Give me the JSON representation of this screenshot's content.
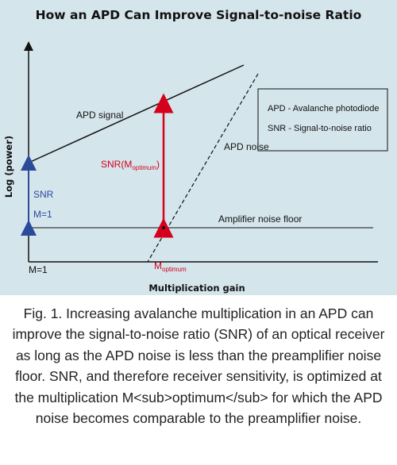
{
  "title": "How an APD Can Improve Signal-to-noise Ratio",
  "axes": {
    "y_label": "Log (power)",
    "x_label": "Multiplication gain",
    "origin_label": "M=1"
  },
  "curves": {
    "apd_signal": "APD signal",
    "apd_noise": "APD noise",
    "amplifier_floor": "Amplifier noise floor"
  },
  "annotations": {
    "snr_left": "SNR",
    "m1_left": "M=1",
    "snr_optimum_main": "SNR(M",
    "snr_optimum_sub": "optimum",
    "snr_optimum_close": ")",
    "m_optimum_main": "M",
    "m_optimum_sub": "optimum"
  },
  "legend": {
    "line1": "APD - Avalanche photodiode",
    "line2": "SNR - Signal-to-noise ratio"
  },
  "caption": "Fig. 1. Increasing avalanche multiplication in an APD can improve the signal-to-noise ratio (SNR) of an optical receiver as long as the APD noise is less than the preamplifier noise floor. SNR, and therefore receiver sensitivity, is optimized at the multiplication M<sub>optimum</sub> for which the APD noise becomes comparable to the preamplifier noise.",
  "colors": {
    "background": "#d5e5ec",
    "line": "#111111",
    "accent_red": "#d4001c",
    "accent_blue": "#2b4a9a"
  }
}
